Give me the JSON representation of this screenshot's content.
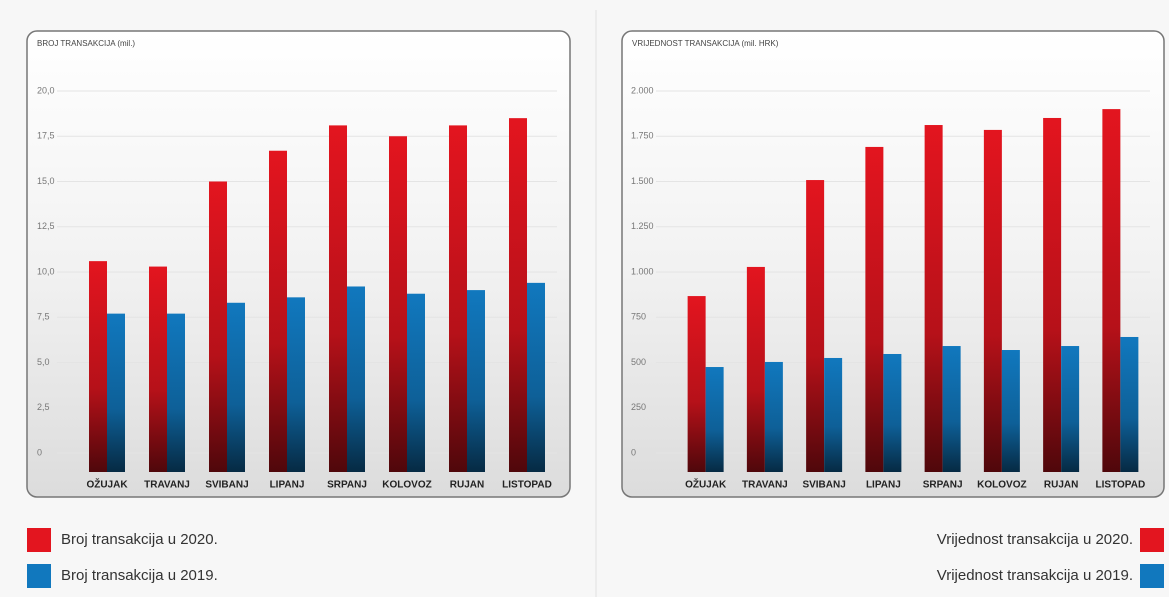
{
  "chart_data": [
    {
      "type": "bar",
      "title": "BROJ TRANSAKCIJA (mil.)",
      "categories": [
        "OŽUJAK",
        "TRAVANJ",
        "SVIBANJ",
        "LIPANJ",
        "SRPANJ",
        "KOLOVOZ",
        "RUJAN",
        "LISTOPAD"
      ],
      "series": [
        {
          "name": "Broj transakcija u 2020.",
          "color": "#e3151f",
          "values": [
            10.6,
            10.3,
            15.0,
            16.7,
            18.1,
            17.5,
            18.1,
            18.5
          ]
        },
        {
          "name": "Broj transakcija u 2019.",
          "color": "#1178be",
          "values": [
            7.7,
            7.7,
            8.3,
            8.6,
            9.2,
            8.8,
            9.0,
            9.4
          ]
        }
      ],
      "ylim": [
        0,
        20
      ],
      "yticks": [
        0,
        {
          "value": 2.5,
          "label": "2,5"
        },
        {
          "value": 5,
          "label": "5,0"
        },
        {
          "value": 7.5,
          "label": "7,5"
        },
        {
          "value": 10,
          "label": "10,0"
        },
        {
          "value": 12.5,
          "label": "12,5"
        },
        {
          "value": 15,
          "label": "15,0"
        },
        {
          "value": 17.5,
          "label": "17,5"
        },
        {
          "value": 20,
          "label": "20,0"
        }
      ],
      "grid": true,
      "legend": "bottom-left"
    },
    {
      "type": "bar",
      "title": "VRIJEDNOST TRANSAKCIJA (mil. HRK)",
      "categories": [
        "OŽUJAK",
        "TRAVANJ",
        "SVIBANJ",
        "LIPANJ",
        "SRPANJ",
        "KOLOVOZ",
        "RUJAN",
        "LISTOPAD"
      ],
      "series": [
        {
          "name": "Vrijednost transakcija u 2020.",
          "color": "#e3151f",
          "values": [
            867,
            1028,
            1508,
            1691,
            1812,
            1785,
            1851,
            1900
          ]
        },
        {
          "name": "Vrijednost transakcija u 2019.",
          "color": "#1178be",
          "values": [
            475,
            503,
            525,
            547,
            591,
            569,
            591,
            641
          ]
        }
      ],
      "ylim": [
        0,
        2000
      ],
      "yticks": [
        0,
        250,
        500,
        750,
        {
          "value": 1000,
          "label": "1.000"
        },
        {
          "value": 1250,
          "label": "1.250"
        },
        {
          "value": 1500,
          "label": "1.500"
        },
        {
          "value": 1750,
          "label": "1.750"
        },
        {
          "value": 2000,
          "label": "2.000"
        }
      ],
      "grid": true,
      "legend": "bottom-right"
    }
  ]
}
